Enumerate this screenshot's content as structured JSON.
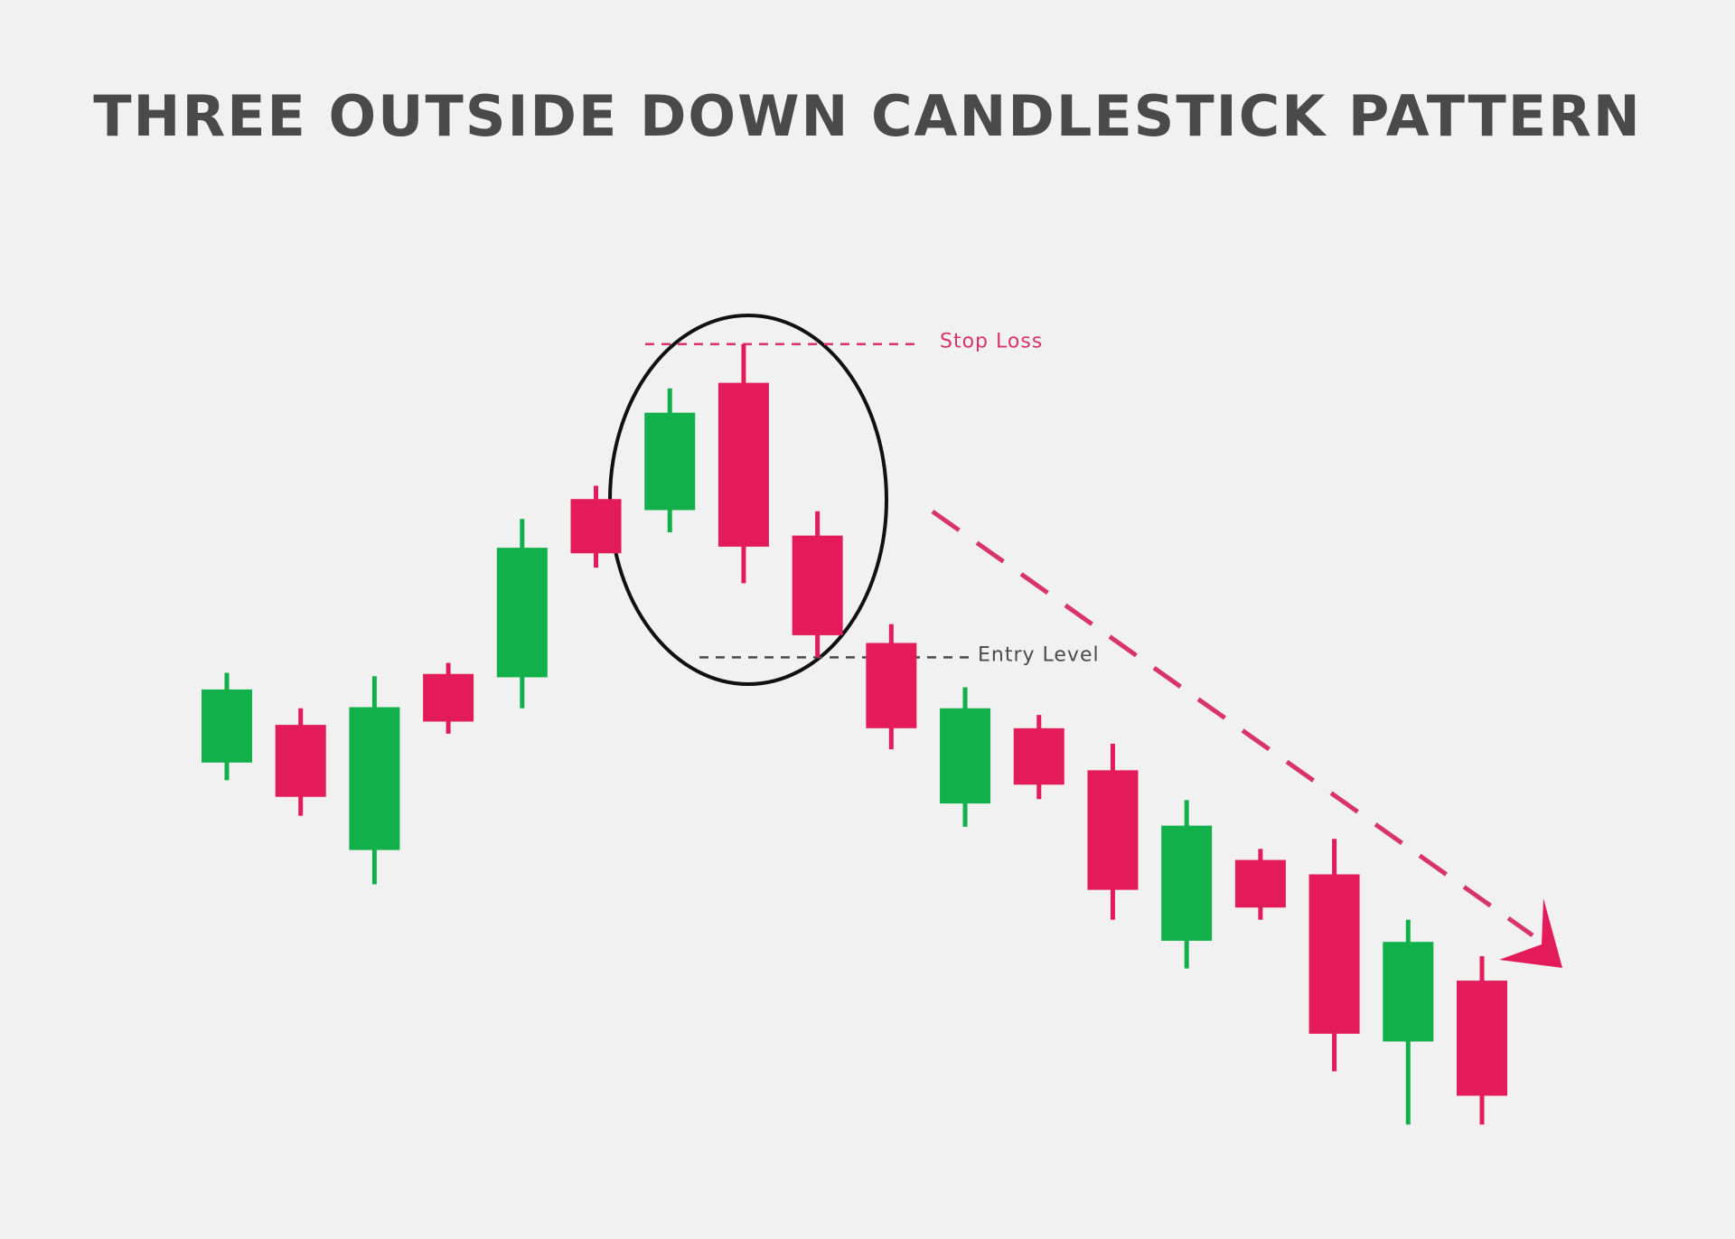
{
  "chart_data": {
    "type": "candlestick",
    "title": "THREE OUTSIDE DOWN CANDLESTICK PATTERN",
    "categories": [
      null,
      null,
      null,
      null,
      null,
      null,
      null,
      null,
      null,
      null,
      null,
      null,
      null,
      null,
      null,
      null,
      null,
      null
    ],
    "open": [
      36.1,
      39.5,
      28.2,
      44.1,
      43.8,
      59.9,
      58.9,
      70.4,
      56.6,
      46.9,
      32.4,
      39.2,
      35.4,
      20.0,
      27.3,
      26.0,
      10.9,
      16.4
    ],
    "high": [
      44.2,
      41.0,
      43.9,
      45.1,
      58.1,
      61.1,
      69.9,
      73.9,
      58.8,
      48.6,
      42.9,
      40.4,
      37.8,
      32.7,
      28.3,
      29.2,
      21.9,
      18.6
    ],
    "low": [
      34.5,
      31.3,
      25.1,
      38.7,
      41.0,
      53.7,
      56.9,
      52.3,
      45.6,
      37.3,
      30.3,
      32.8,
      21.9,
      17.5,
      21.9,
      8.2,
      3.4,
      3.4
    ],
    "close": [
      42.7,
      33.0,
      41.1,
      39.8,
      55.5,
      55.0,
      67.7,
      55.6,
      47.6,
      39.2,
      41.0,
      34.1,
      24.6,
      30.4,
      23.0,
      11.6,
      19.9,
      6.0
    ],
    "up_color": "#12b04a",
    "down_color": "#e31b5b",
    "ylim": [
      0,
      80
    ],
    "levels": [
      {
        "label": "Stop Loss",
        "value": 73.9,
        "color": "#d8336b"
      },
      {
        "label": "Entry Level",
        "value": 45.6,
        "color": "#4a4a4a"
      }
    ]
  }
}
